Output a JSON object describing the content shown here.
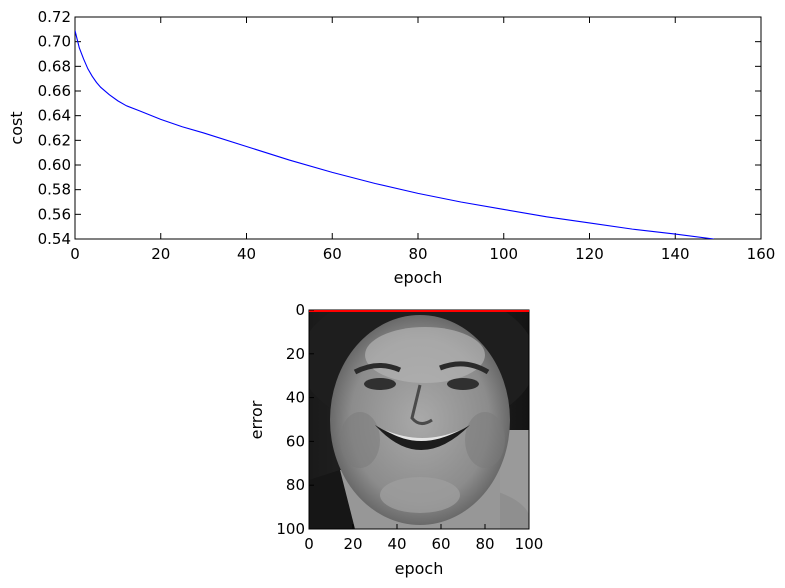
{
  "chart_data": [
    {
      "type": "line",
      "title": "",
      "xlabel": "epoch",
      "ylabel": "cost",
      "xlim": [
        0,
        160
      ],
      "ylim": [
        0.54,
        0.72
      ],
      "xticks": [
        "0",
        "20",
        "40",
        "60",
        "80",
        "100",
        "120",
        "140",
        "160"
      ],
      "yticks": [
        "0.54",
        "0.56",
        "0.58",
        "0.60",
        "0.62",
        "0.64",
        "0.66",
        "0.68",
        "0.70",
        "0.72"
      ],
      "grid": false,
      "series": [
        {
          "color": "#0000ff",
          "x": [
            0,
            1,
            2,
            3,
            4,
            5,
            6,
            8,
            10,
            12,
            15,
            20,
            25,
            30,
            40,
            50,
            60,
            70,
            80,
            90,
            100,
            110,
            120,
            130,
            140,
            149
          ],
          "y": [
            0.709,
            0.695,
            0.686,
            0.678,
            0.672,
            0.667,
            0.663,
            0.657,
            0.652,
            0.648,
            0.644,
            0.637,
            0.631,
            0.626,
            0.615,
            0.604,
            0.594,
            0.585,
            0.577,
            0.57,
            0.564,
            0.558,
            0.553,
            0.548,
            0.544,
            0.54
          ]
        }
      ]
    },
    {
      "type": "heatmap",
      "title": "",
      "xlabel": "epoch",
      "ylabel": "error",
      "xlim": [
        0,
        100
      ],
      "ylim": [
        100,
        0
      ],
      "xticks": [
        "0",
        "20",
        "40",
        "60",
        "80",
        "100"
      ],
      "yticks": [
        "0",
        "20",
        "40",
        "60",
        "80",
        "100"
      ],
      "colormap": "gray",
      "overlay_line": {
        "color": "#ff0000",
        "x": [
          0,
          100
        ],
        "y": [
          0,
          0
        ]
      }
    }
  ]
}
